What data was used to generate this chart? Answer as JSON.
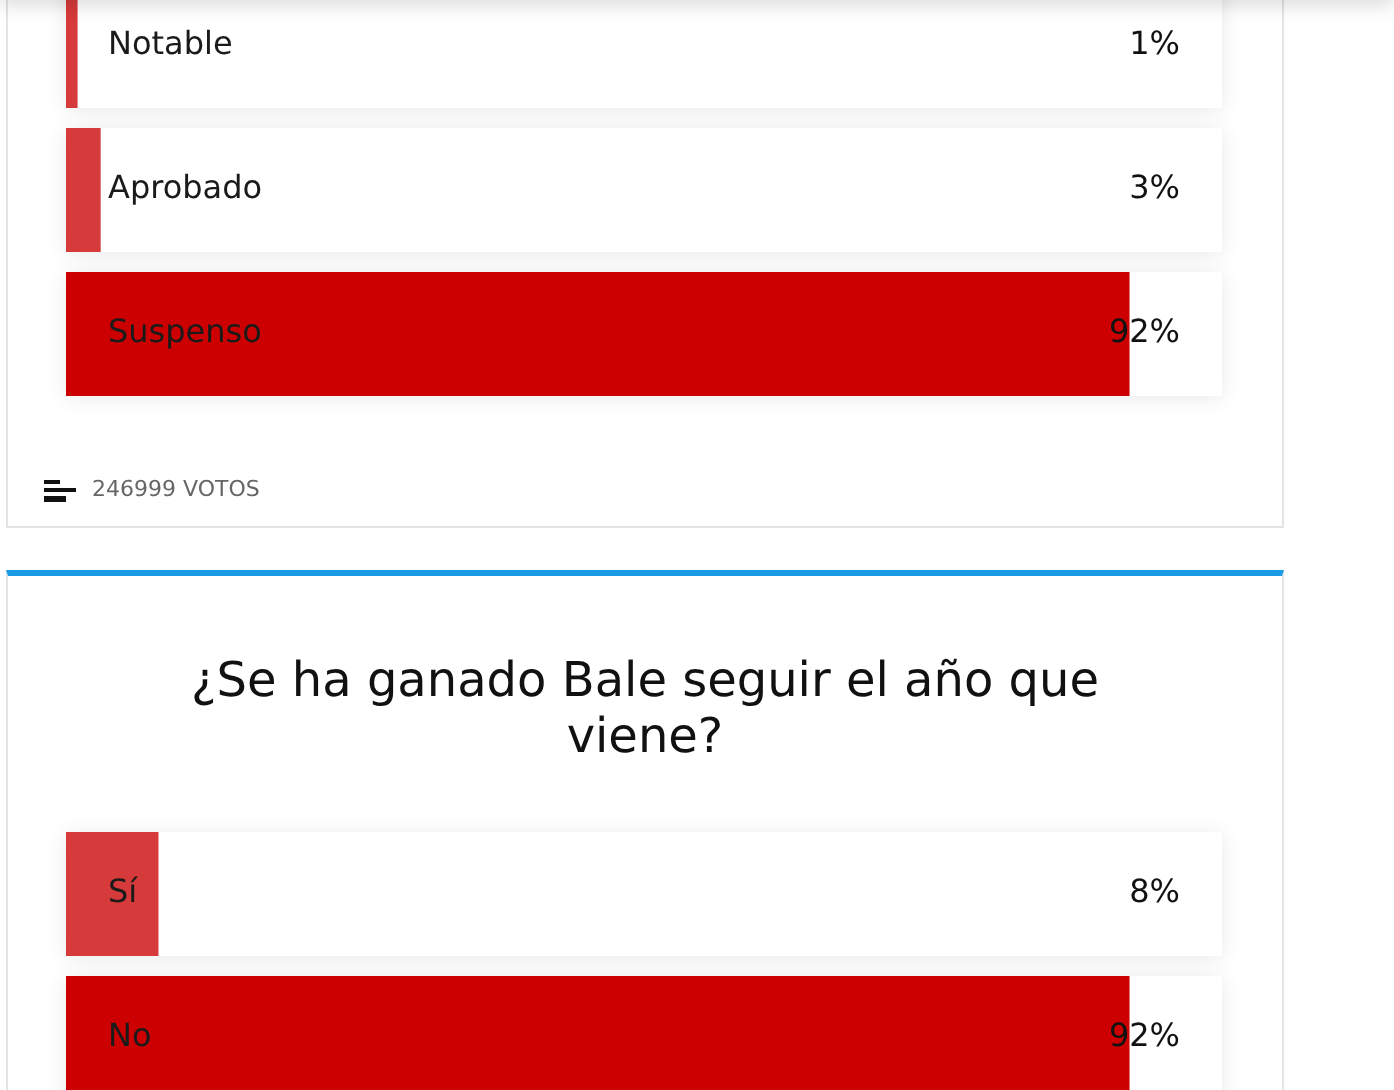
{
  "chart_data": [
    {
      "type": "bar",
      "orientation": "horizontal",
      "categories": [
        "Notable",
        "Aprobado",
        "Suspenso"
      ],
      "values": [
        1,
        3,
        92
      ],
      "colors": [
        "#d63a3a",
        "#d63a3a",
        "#cc0000"
      ],
      "value_labels": [
        "1%",
        "3%",
        "92%"
      ],
      "xlim": [
        0,
        100
      ],
      "tick_labels": "y",
      "annotations": [
        "246999 VOTOS"
      ]
    },
    {
      "type": "bar",
      "orientation": "horizontal",
      "title": "¿Se ha ganado Bale seguir el año que viene?",
      "categories": [
        "Sí",
        "No"
      ],
      "values": [
        8,
        92
      ],
      "colors": [
        "#d63a3a",
        "#cc0000"
      ],
      "value_labels": [
        "8%",
        "92%"
      ],
      "xlim": [
        0,
        100
      ],
      "tick_labels": "y"
    }
  ]
}
